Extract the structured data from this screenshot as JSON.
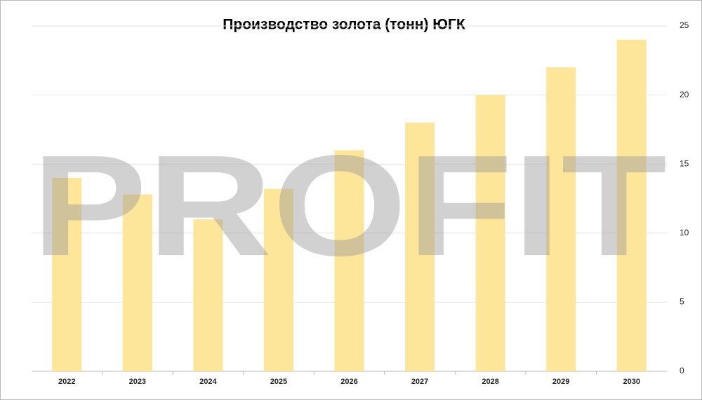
{
  "chart_data": {
    "type": "bar",
    "title": "Производство золота (тонн) ЮГК",
    "categories": [
      "2022",
      "2023",
      "2024",
      "2025",
      "2026",
      "2027",
      "2028",
      "2029",
      "2030"
    ],
    "values": [
      14,
      12.8,
      11,
      13.2,
      16,
      18,
      20,
      22,
      24
    ],
    "color": "#fde599",
    "ylim": [
      0,
      25
    ],
    "yticks": [
      0,
      5,
      10,
      15,
      20,
      25
    ],
    "grid": true,
    "y_axis_side": "right",
    "watermark": "PROFIT"
  }
}
